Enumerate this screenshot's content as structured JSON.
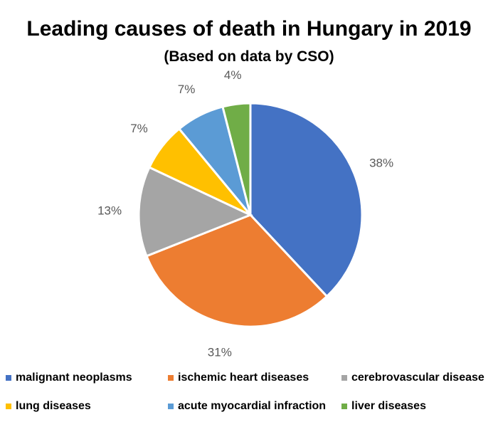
{
  "chart_data": {
    "type": "pie",
    "title": "Leading causes of death in Hungary in 2019",
    "subtitle": "(Based on data by CSO)",
    "legend_position": "bottom",
    "categories": [
      "malignant neoplasms",
      "ischemic heart diseases",
      "cerebrovascular disease",
      "lung diseases",
      "acute myocardial infraction",
      "liver diseases"
    ],
    "values": [
      38,
      31,
      13,
      7,
      7,
      4
    ],
    "labels": [
      "38%",
      "31%",
      "13%",
      "7%",
      "7%",
      "4%"
    ],
    "colors": [
      "#4472C4",
      "#ED7D31",
      "#A5A5A5",
      "#FFC000",
      "#5B9BD5",
      "#70AD47"
    ]
  }
}
